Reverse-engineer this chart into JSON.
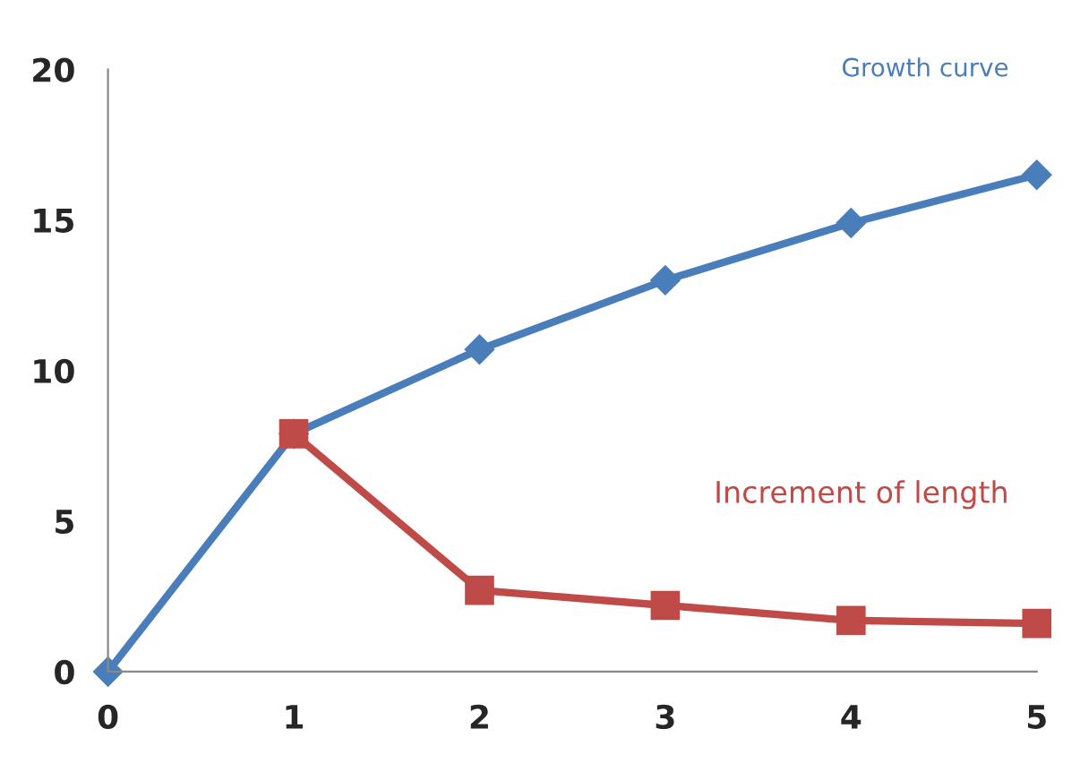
{
  "chart_data": {
    "type": "line",
    "xlim": [
      0,
      5
    ],
    "xticks": [
      0,
      1,
      2,
      3,
      4,
      5
    ],
    "ylim": [
      0,
      20
    ],
    "yticks": [
      0,
      5,
      10,
      15,
      20
    ],
    "grid": false,
    "legend": false,
    "series": [
      {
        "name": "Growth curve",
        "color": "#4a7ebb",
        "marker": "diamond",
        "x": [
          0,
          1,
          2,
          3,
          4,
          5
        ],
        "values": [
          0,
          7.9,
          10.7,
          13.0,
          14.9,
          16.5
        ]
      },
      {
        "name": "Increment of length",
        "color": "#be4b48",
        "marker": "square",
        "x": [
          1,
          2,
          3,
          4,
          5
        ],
        "values": [
          7.9,
          2.7,
          2.2,
          1.7,
          1.6
        ]
      }
    ]
  }
}
